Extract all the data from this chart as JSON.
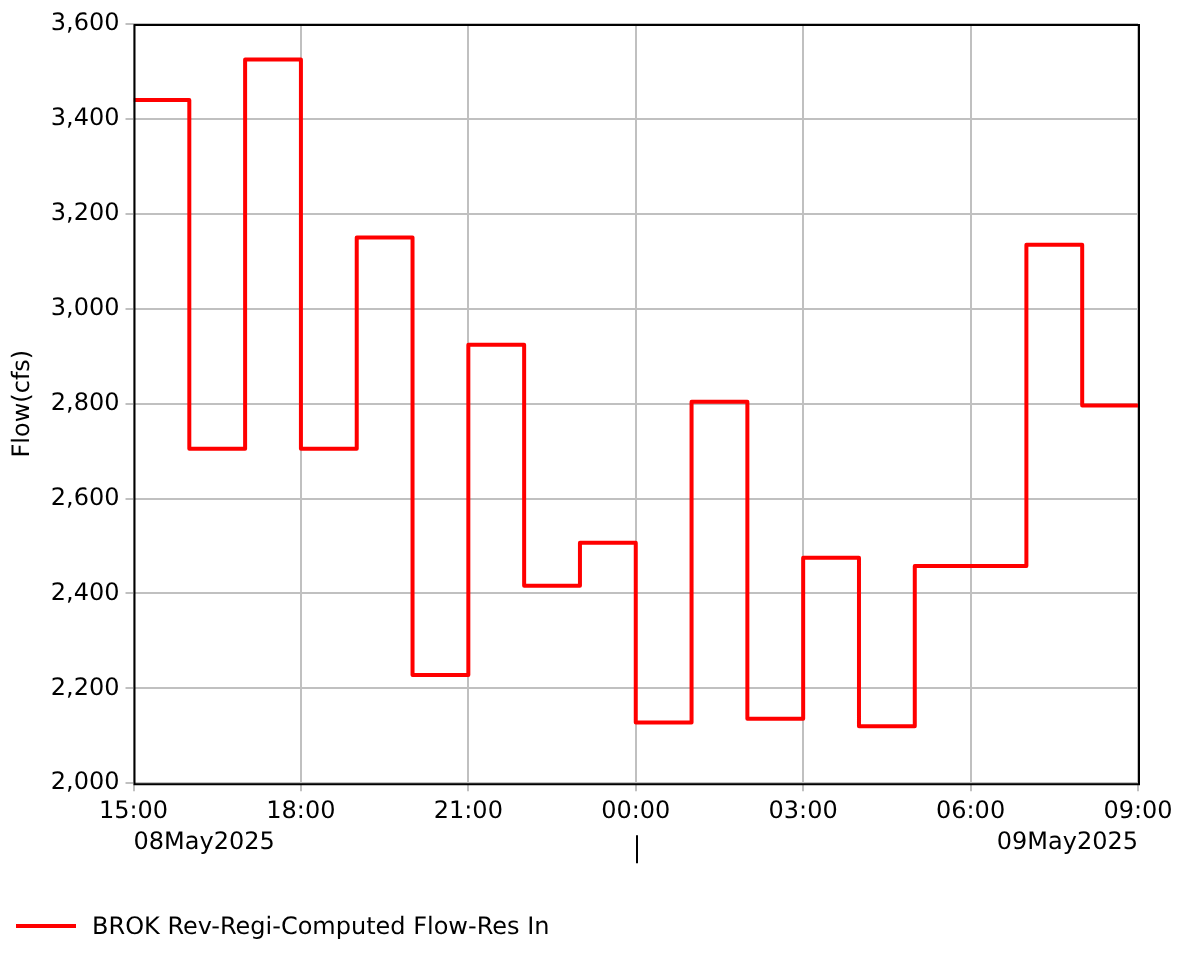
{
  "chart_data": {
    "type": "step",
    "ylabel": "Flow(cfs)",
    "x": [
      "2025-05-08T15:00",
      "2025-05-08T16:00",
      "2025-05-08T17:00",
      "2025-05-08T18:00",
      "2025-05-08T19:00",
      "2025-05-08T20:00",
      "2025-05-08T21:00",
      "2025-05-08T22:00",
      "2025-05-08T23:00",
      "2025-05-09T00:00",
      "2025-05-09T01:00",
      "2025-05-09T02:00",
      "2025-05-09T03:00",
      "2025-05-09T04:00",
      "2025-05-09T05:00",
      "2025-05-09T06:00",
      "2025-05-09T07:00",
      "2025-05-09T08:00",
      "2025-05-09T09:00"
    ],
    "series": [
      {
        "name": "BROK Rev-Regi-Computed Flow-Res In",
        "color": "#ff0000",
        "values": [
          3440,
          2705,
          3525,
          2705,
          3150,
          2228,
          2924,
          2416,
          2507,
          2128,
          2804,
          2136,
          2475,
          2120,
          2458,
          2458,
          3135,
          2796,
          2796
        ]
      }
    ],
    "xlim": [
      "2025-05-08T15:00",
      "2025-05-09T09:00"
    ],
    "xticks": [
      {
        "value": "2025-05-08T15:00",
        "label": "15:00"
      },
      {
        "value": "2025-05-08T18:00",
        "label": "18:00"
      },
      {
        "value": "2025-05-08T21:00",
        "label": "21:00"
      },
      {
        "value": "2025-05-09T00:00",
        "label": "00:00"
      },
      {
        "value": "2025-05-09T03:00",
        "label": "03:00"
      },
      {
        "value": "2025-05-09T06:00",
        "label": "06:00"
      },
      {
        "value": "2025-05-09T09:00",
        "label": "09:00"
      }
    ],
    "ylim": [
      2000,
      3600
    ],
    "yticks": [
      {
        "value": 2000,
        "label": "2,000"
      },
      {
        "value": 2200,
        "label": "2,200"
      },
      {
        "value": 2400,
        "label": "2,400"
      },
      {
        "value": 2600,
        "label": "2,600"
      },
      {
        "value": 2800,
        "label": "2,800"
      },
      {
        "value": 3000,
        "label": "3,000"
      },
      {
        "value": 3200,
        "label": "3,200"
      },
      {
        "value": 3400,
        "label": "3,400"
      },
      {
        "value": 3600,
        "label": "3,600"
      }
    ],
    "annotations": [
      "08May2025",
      "09May2025"
    ],
    "grid": true,
    "legend": "bottom left",
    "line_style": "solid",
    "marker": "none"
  }
}
